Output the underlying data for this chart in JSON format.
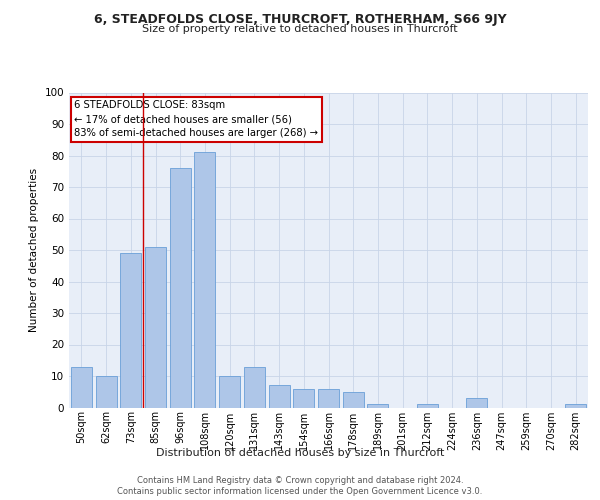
{
  "title": "6, STEADFOLDS CLOSE, THURCROFT, ROTHERHAM, S66 9JY",
  "subtitle": "Size of property relative to detached houses in Thurcroft",
  "xlabel": "Distribution of detached houses by size in Thurcroft",
  "ylabel": "Number of detached properties",
  "categories": [
    "50sqm",
    "62sqm",
    "73sqm",
    "85sqm",
    "96sqm",
    "108sqm",
    "120sqm",
    "131sqm",
    "143sqm",
    "154sqm",
    "166sqm",
    "178sqm",
    "189sqm",
    "201sqm",
    "212sqm",
    "224sqm",
    "236sqm",
    "247sqm",
    "259sqm",
    "270sqm",
    "282sqm"
  ],
  "values": [
    13,
    10,
    49,
    51,
    76,
    81,
    10,
    13,
    7,
    6,
    6,
    5,
    1,
    0,
    1,
    0,
    3,
    0,
    0,
    0,
    1
  ],
  "bar_color": "#aec6e8",
  "bar_edge_color": "#6a9fd8",
  "vline_x_index": 3,
  "vline_color": "#cc0000",
  "annotation_box_text": "6 STEADFOLDS CLOSE: 83sqm\n← 17% of detached houses are smaller (56)\n83% of semi-detached houses are larger (268) →",
  "annotation_box_color": "#cc0000",
  "ylim": [
    0,
    100
  ],
  "yticks": [
    0,
    10,
    20,
    30,
    40,
    50,
    60,
    70,
    80,
    90,
    100
  ],
  "grid_color": "#c8d4e8",
  "bg_color": "#e8eef8",
  "footer_line1": "Contains HM Land Registry data © Crown copyright and database right 2024.",
  "footer_line2": "Contains public sector information licensed under the Open Government Licence v3.0."
}
